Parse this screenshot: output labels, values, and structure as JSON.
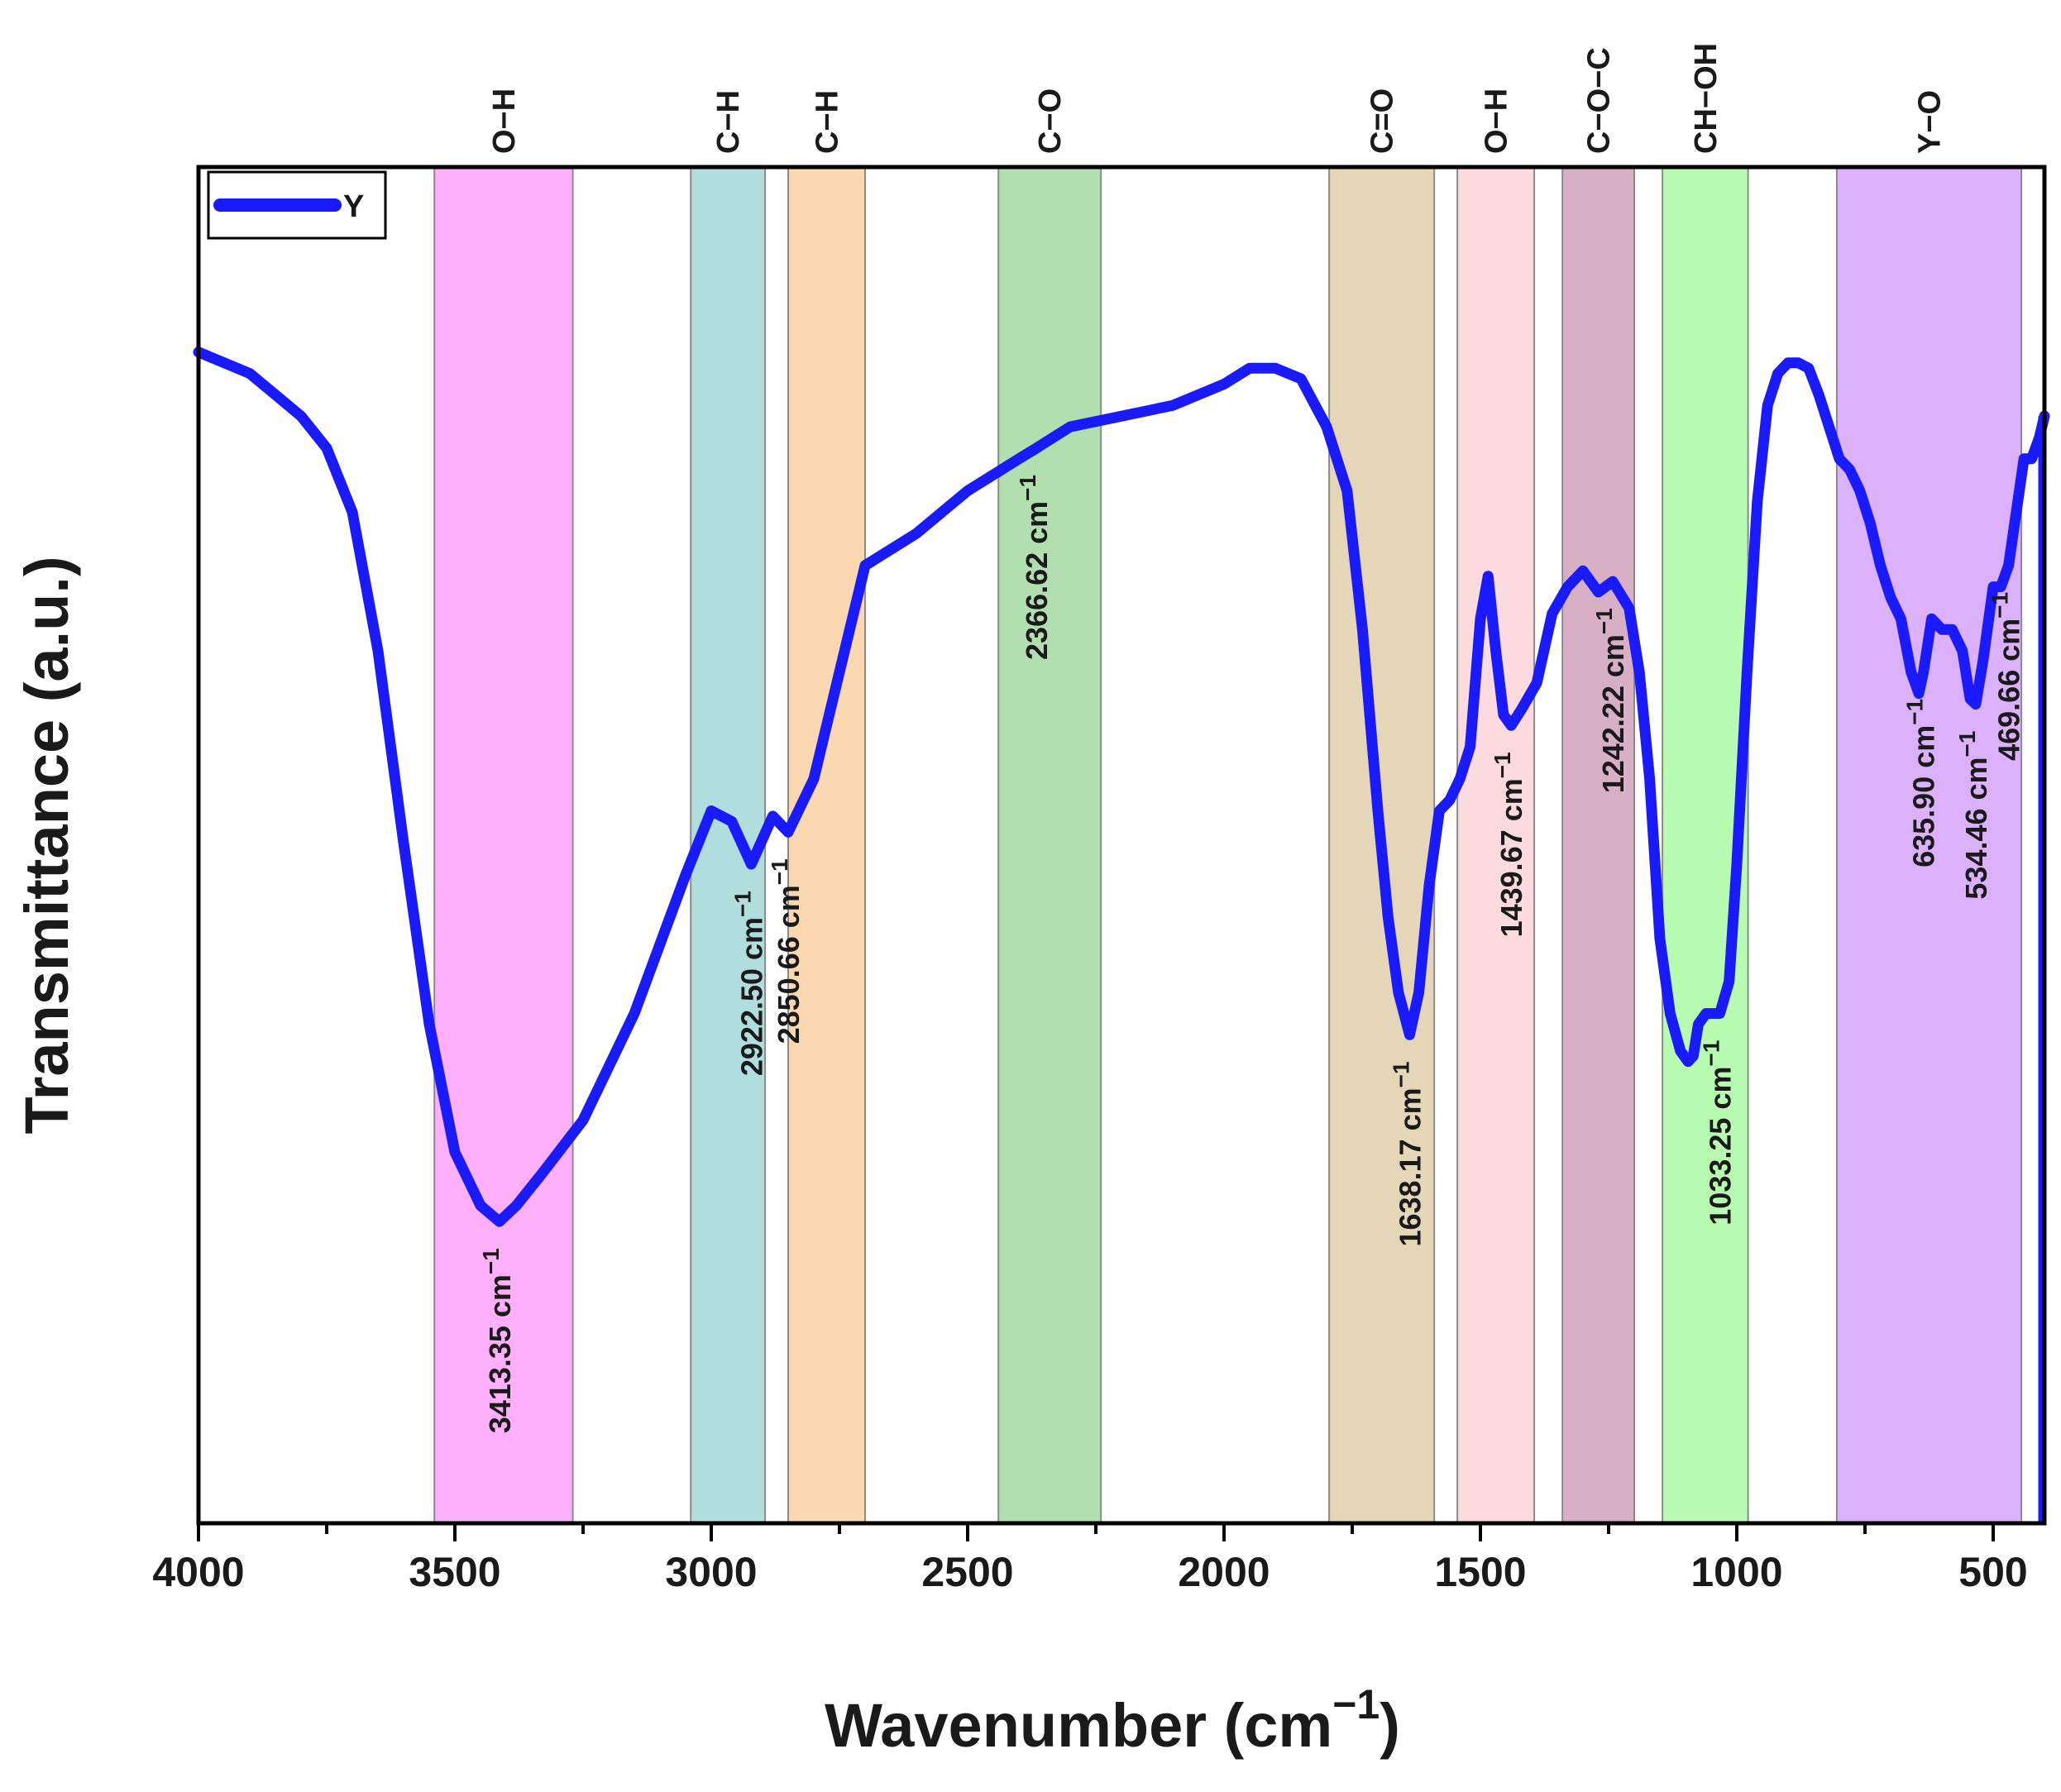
{
  "chart_data": {
    "type": "line",
    "xlabel": "Wavenumber (cm",
    "xlabel_sup": "−1",
    "xlabel_close": ")",
    "ylabel": "Transmittance (a.u.)",
    "xlim": [
      4000,
      400
    ],
    "x_reversed": true,
    "ylim": [
      0,
      100
    ],
    "y_ticks_shown": false,
    "x_ticks": [
      4000,
      3500,
      3000,
      2500,
      2000,
      1500,
      1000,
      500
    ],
    "x_tick_labels": [
      "4000",
      "3500",
      "3000",
      "2500",
      "2000",
      "1500",
      "1000",
      "500"
    ],
    "grid": false,
    "legend": {
      "position": "top-left",
      "entries": [
        {
          "name": "Y",
          "color": "#1a1aff"
        }
      ]
    },
    "series": [
      {
        "name": "Y",
        "color": "#1a1aff",
        "x": [
          4000,
          3900,
          3850,
          3800,
          3750,
          3700,
          3650,
          3600,
          3550,
          3500,
          3450,
          3413,
          3380,
          3330,
          3250,
          3150,
          3050,
          3000,
          2960,
          2922,
          2880,
          2850,
          2800,
          2700,
          2600,
          2500,
          2400,
          2366,
          2300,
          2200,
          2100,
          2000,
          1950,
          1900,
          1850,
          1800,
          1760,
          1730,
          1700,
          1680,
          1660,
          1638,
          1620,
          1600,
          1580,
          1560,
          1540,
          1520,
          1500,
          1485,
          1470,
          1455,
          1440,
          1420,
          1390,
          1360,
          1330,
          1300,
          1270,
          1242,
          1210,
          1190,
          1170,
          1150,
          1130,
          1110,
          1095,
          1085,
          1075,
          1060,
          1045,
          1033,
          1015,
          1000,
          980,
          960,
          940,
          920,
          900,
          880,
          860,
          840,
          820,
          800,
          780,
          760,
          740,
          720,
          700,
          680,
          660,
          645,
          636,
          620,
          600,
          580,
          560,
          545,
          534,
          520,
          500,
          485,
          470,
          455,
          440,
          425,
          410,
          400
        ],
        "y": [
          98,
          96,
          94,
          92,
          89,
          83,
          70,
          52,
          35,
          23,
          18,
          16.5,
          18,
          21,
          26,
          36,
          49,
          55,
          54,
          50,
          54.5,
          53,
          58,
          78,
          81,
          85,
          88,
          89,
          91,
          92,
          93,
          95,
          96.5,
          96.5,
          95.5,
          91,
          85,
          72,
          55,
          45,
          38,
          34,
          38,
          48,
          55,
          56,
          58,
          61,
          73,
          77,
          70,
          64,
          63,
          64.5,
          67,
          73.5,
          76,
          77.5,
          75.5,
          76.5,
          74,
          68,
          58,
          43,
          36,
          32.5,
          31.5,
          32,
          35,
          36,
          36,
          36,
          39,
          50,
          68,
          84,
          93,
          96,
          97,
          97,
          96.5,
          94,
          91,
          88,
          87,
          85,
          82,
          78,
          75,
          73,
          68,
          66,
          68,
          73,
          72,
          72,
          70,
          65.5,
          65,
          69,
          76,
          76,
          78,
          83,
          88,
          88,
          90,
          92
        ]
      }
    ],
    "bands": [
      {
        "label": "O−H",
        "from": 3540,
        "to": 3270,
        "color": "#ffb0fb"
      },
      {
        "label": "C−H",
        "from": 3040,
        "to": 2895,
        "color": "#b1dedd"
      },
      {
        "label": "C−H",
        "from": 2850,
        "to": 2700,
        "color": "#fbd8b0"
      },
      {
        "label": "C−O",
        "from": 2440,
        "to": 2240,
        "color": "#b2dfb0"
      },
      {
        "label": "C=O",
        "from": 1795,
        "to": 1590,
        "color": "#e4d6b6"
      },
      {
        "label": "O−H",
        "from": 1545,
        "to": 1395,
        "color": "#fcdbdf"
      },
      {
        "label": "C−O−C",
        "from": 1340,
        "to": 1200,
        "color": "#d8b0c6"
      },
      {
        "label": "CH−OH",
        "from": 1145,
        "to": 978,
        "color": "#b7fcb0"
      },
      {
        "label": "Y−O",
        "from": 805,
        "to": 445,
        "color": "#dbb1fc"
      }
    ],
    "annotations": [
      {
        "value": "3413.35 cm",
        "sup": "−1",
        "x": 3413,
        "y": 16.5
      },
      {
        "value": "2922.50 cm",
        "sup": "−1",
        "x": 2922,
        "y": 50
      },
      {
        "value": "2850.66 cm",
        "sup": "−1",
        "x": 2850,
        "y": 53
      },
      {
        "value": "2366.62 cm",
        "sup": "−1",
        "x": 2366,
        "y": 89
      },
      {
        "value": "1638.17 cm",
        "sup": "−1",
        "x": 1638,
        "y": 34
      },
      {
        "value": "1439.67 cm",
        "sup": "−1",
        "x": 1440,
        "y": 63
      },
      {
        "value": "1242.22 cm",
        "sup": "−1",
        "x": 1242,
        "y": 76.5
      },
      {
        "value": "1033.25 cm",
        "sup": "−1",
        "x": 1033,
        "y": 36
      },
      {
        "value": "635.90 cm",
        "sup": "−1",
        "x": 636,
        "y": 68
      },
      {
        "value": "534.46 cm",
        "sup": "−1",
        "x": 534,
        "y": 65
      },
      {
        "value": "469.66 cm",
        "sup": "−1",
        "x": 470,
        "y": 78
      }
    ]
  }
}
